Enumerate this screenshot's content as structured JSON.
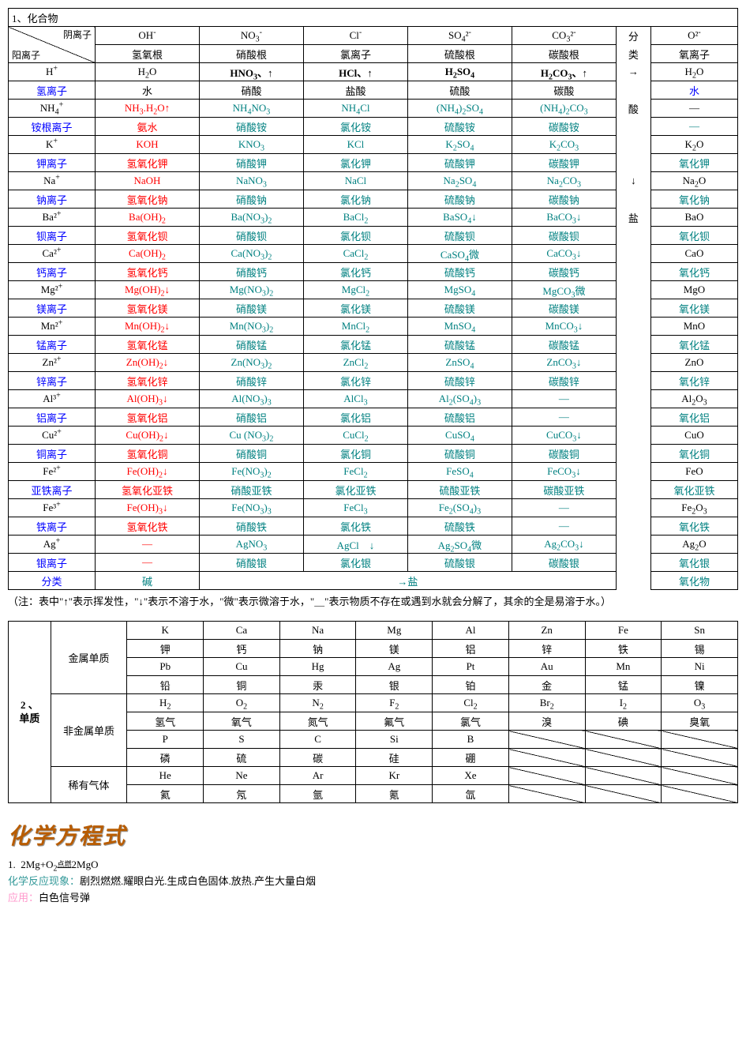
{
  "colors": {
    "blue": "#0000ff",
    "red": "#ff0000",
    "teal": "#008080",
    "black": "#000000",
    "title_orange": "#b85c00",
    "label_teal": "#339999",
    "label_pink": "#ff99cc",
    "bg": "#ffffff"
  },
  "table1": {
    "title": "1、化合物",
    "diag_top": "阴离子",
    "diag_bot": "阳离子",
    "cols": [
      {
        "f": "OH⁻",
        "n": "氢氧根"
      },
      {
        "f": "NO₃⁻",
        "n": "硝酸根"
      },
      {
        "f": "Cl⁻",
        "n": "氯离子"
      },
      {
        "f": "SO₄²⁻",
        "n": "硫酸根"
      },
      {
        "f": "CO₃²⁻",
        "n": "碳酸根"
      }
    ],
    "class_col": {
      "h1": "分",
      "h2": "类",
      "acid": "酸",
      "salt": "盐",
      "arrow_r": "→",
      "arrow_d": "↓"
    },
    "oxide_col": {
      "f": "O²⁻",
      "n": "氧离子"
    },
    "rows": [
      {
        "ion": "H⁺",
        "ion_n": "氢离子",
        "c": [
          {
            "f": "H₂O",
            "n": "水",
            "cl": "black"
          },
          {
            "f": "HNO₃、↑",
            "n": "硝酸",
            "cl": "black",
            "b": true
          },
          {
            "f": "HCl、↑",
            "n": "盐酸",
            "cl": "black",
            "b": true
          },
          {
            "f": "H₂SO₄",
            "n": "硫酸",
            "cl": "black",
            "b": true
          },
          {
            "f": "H₂CO₃、↑",
            "n": "碳酸",
            "cl": "black",
            "b": true
          }
        ],
        "ox": {
          "f": "H₂O",
          "n": "水",
          "ncl": "blue"
        }
      },
      {
        "ion": "NH₄⁺",
        "ion_n": "铵根离子",
        "c": [
          {
            "f": "NH₃.H₂O↑",
            "n": "氨水",
            "cl": "red"
          },
          {
            "f": "NH₄NO₃",
            "n": "硝酸铵",
            "cl": "teal"
          },
          {
            "f": "NH₄Cl",
            "n": "氯化铵",
            "cl": "teal"
          },
          {
            "f": "(NH₄)₂SO₄",
            "n": "硫酸铵",
            "cl": "teal"
          },
          {
            "f": "(NH₄)₂CO₃",
            "n": "碳酸铵",
            "cl": "teal"
          }
        ],
        "ox": {
          "f": "—",
          "n": "—"
        }
      },
      {
        "ion": "K⁺",
        "ion_n": "钾离子",
        "c": [
          {
            "f": "KOH",
            "n": "氢氧化钾",
            "cl": "red"
          },
          {
            "f": "KNO₃",
            "n": "硝酸钾",
            "cl": "teal"
          },
          {
            "f": "KCl",
            "n": "氯化钾",
            "cl": "teal"
          },
          {
            "f": "K₂SO₄",
            "n": "硫酸钾",
            "cl": "teal"
          },
          {
            "f": "K₂CO₃",
            "n": "碳酸钾",
            "cl": "teal"
          }
        ],
        "ox": {
          "f": "K₂O",
          "n": "氧化钾"
        }
      },
      {
        "ion": "Na⁺",
        "ion_n": "钠离子",
        "c": [
          {
            "f": "NaOH",
            "n": "氢氧化钠",
            "cl": "red"
          },
          {
            "f": "NaNO₃",
            "n": "硝酸钠",
            "cl": "teal"
          },
          {
            "f": "NaCl",
            "n": "氯化钠",
            "cl": "teal"
          },
          {
            "f": "Na₂SO₄",
            "n": "硫酸钠",
            "cl": "teal"
          },
          {
            "f": "Na₂CO₃",
            "n": "碳酸钠",
            "cl": "teal"
          }
        ],
        "ox": {
          "f": "Na₂O",
          "n": "氧化钠"
        }
      },
      {
        "ion": "Ba²⁺",
        "ion_n": "钡离子",
        "c": [
          {
            "f": "Ba(OH)₂",
            "n": "氢氧化钡",
            "cl": "red"
          },
          {
            "f": "Ba(NO₃)₂",
            "n": "硝酸钡",
            "cl": "teal"
          },
          {
            "f": "BaCl₂",
            "n": "氯化钡",
            "cl": "teal"
          },
          {
            "f": "BaSO₄↓",
            "n": "硫酸钡",
            "cl": "teal"
          },
          {
            "f": "BaCO₃↓",
            "n": "碳酸钡",
            "cl": "teal"
          }
        ],
        "ox": {
          "f": "BaO",
          "n": "氧化钡"
        }
      },
      {
        "ion": "Ca²⁺",
        "ion_n": "钙离子",
        "c": [
          {
            "f": "Ca(OH)₂",
            "n": "氢氧化钙",
            "cl": "red"
          },
          {
            "f": "Ca(NO₃)₂",
            "n": "硝酸钙",
            "cl": "teal"
          },
          {
            "f": "CaCl₂",
            "n": "氯化钙",
            "cl": "teal"
          },
          {
            "f": "CaSO₄微",
            "n": "硫酸钙",
            "cl": "teal"
          },
          {
            "f": "CaCO₃↓",
            "n": "碳酸钙",
            "cl": "teal"
          }
        ],
        "ox": {
          "f": "CaO",
          "n": "氧化钙"
        }
      },
      {
        "ion": "Mg²⁺",
        "ion_n": "镁离子",
        "c": [
          {
            "f": "Mg(OH)₂↓",
            "n": "氢氧化镁",
            "cl": "red"
          },
          {
            "f": "Mg(NO₃)₂",
            "n": "硝酸镁",
            "cl": "teal"
          },
          {
            "f": "MgCl₂",
            "n": "氯化镁",
            "cl": "teal"
          },
          {
            "f": "MgSO₄",
            "n": "硫酸镁",
            "cl": "teal"
          },
          {
            "f": "MgCO₃微",
            "n": "碳酸镁",
            "cl": "teal"
          }
        ],
        "ox": {
          "f": "MgO",
          "n": "氧化镁"
        }
      },
      {
        "ion": "Mn²⁺",
        "ion_n": "锰离子",
        "c": [
          {
            "f": "Mn(OH)₂↓",
            "n": "氢氧化锰",
            "cl": "red"
          },
          {
            "f": "Mn(NO₃)₂",
            "n": "硝酸锰",
            "cl": "teal"
          },
          {
            "f": "MnCl₂",
            "n": "氯化锰",
            "cl": "teal"
          },
          {
            "f": "MnSO₄",
            "n": "硫酸锰",
            "cl": "teal"
          },
          {
            "f": "MnCO₃↓",
            "n": "碳酸锰",
            "cl": "teal"
          }
        ],
        "ox": {
          "f": "MnO",
          "n": "氧化锰"
        }
      },
      {
        "ion": "Zn²⁺",
        "ion_n": "锌离子",
        "c": [
          {
            "f": "Zn(OH)₂↓",
            "n": "氢氧化锌",
            "cl": "red"
          },
          {
            "f": "Zn(NO₃)₂",
            "n": "硝酸锌",
            "cl": "teal"
          },
          {
            "f": "ZnCl₂",
            "n": "氯化锌",
            "cl": "teal"
          },
          {
            "f": "ZnSO₄",
            "n": "硫酸锌",
            "cl": "teal"
          },
          {
            "f": "ZnCO₃↓",
            "n": "碳酸锌",
            "cl": "teal"
          }
        ],
        "ox": {
          "f": "ZnO",
          "n": "氧化锌"
        }
      },
      {
        "ion": "Al³⁺",
        "ion_n": "铝离子",
        "c": [
          {
            "f": "Al(OH)₃↓",
            "n": "氢氧化铝",
            "cl": "red"
          },
          {
            "f": "Al(NO₃)₃",
            "n": "硝酸铝",
            "cl": "teal"
          },
          {
            "f": "AlCl₃",
            "n": "氯化铝",
            "cl": "teal"
          },
          {
            "f": "Al₂(SO₄)₃",
            "n": "硫酸铝",
            "cl": "teal"
          },
          {
            "f": "—",
            "n": "—",
            "cl": "teal"
          }
        ],
        "ox": {
          "f": "Al₂O₃",
          "n": "氧化铝"
        }
      },
      {
        "ion": "Cu²⁺",
        "ion_n": "铜离子",
        "c": [
          {
            "f": "Cu(OH)₂↓",
            "n": "氢氧化铜",
            "cl": "red"
          },
          {
            "f": "Cu (NO₃)₂",
            "n": "硝酸铜",
            "cl": "teal"
          },
          {
            "f": "CuCl₂",
            "n": "氯化铜",
            "cl": "teal"
          },
          {
            "f": "CuSO₄",
            "n": "硫酸铜",
            "cl": "teal"
          },
          {
            "f": "CuCO₃↓",
            "n": "碳酸铜",
            "cl": "teal"
          }
        ],
        "ox": {
          "f": "CuO",
          "n": "氧化铜"
        }
      },
      {
        "ion": "Fe²⁺",
        "ion_n": "亚铁离子",
        "c": [
          {
            "f": "Fe(OH)₂↓",
            "n": "氢氧化亚铁",
            "cl": "red"
          },
          {
            "f": "Fe(NO₃)₂",
            "n": "硝酸亚铁",
            "cl": "teal"
          },
          {
            "f": "FeCl₂",
            "n": "氯化亚铁",
            "cl": "teal"
          },
          {
            "f": "FeSO₄",
            "n": "硫酸亚铁",
            "cl": "teal"
          },
          {
            "f": "FeCO₃↓",
            "n": "碳酸亚铁",
            "cl": "teal"
          }
        ],
        "ox": {
          "f": "FeO",
          "n": "氧化亚铁"
        }
      },
      {
        "ion": "Fe³⁺",
        "ion_n": "铁离子",
        "c": [
          {
            "f": "Fe(OH)₃↓",
            "n": "氢氧化铁",
            "cl": "red"
          },
          {
            "f": "Fe(NO₃)₃",
            "n": "硝酸铁",
            "cl": "teal"
          },
          {
            "f": "FeCl₃",
            "n": "氯化铁",
            "cl": "teal"
          },
          {
            "f": "Fe₂(SO₄)₃",
            "n": "硫酸铁",
            "cl": "teal"
          },
          {
            "f": "—",
            "n": "—",
            "cl": "teal"
          }
        ],
        "ox": {
          "f": "Fe₂O₃",
          "n": "氧化铁"
        }
      },
      {
        "ion": "Ag⁺",
        "ion_n": "银离子",
        "c": [
          {
            "f": "—",
            "n": "—",
            "cl": "red"
          },
          {
            "f": "AgNO₃",
            "n": "硝酸银",
            "cl": "teal"
          },
          {
            "f": "AgCl　↓",
            "n": "氯化银",
            "cl": "teal"
          },
          {
            "f": "Ag₂SO₄微",
            "n": "硫酸银",
            "cl": "teal"
          },
          {
            "f": "Ag₂CO₃↓",
            "n": "碳酸银",
            "cl": "teal"
          }
        ],
        "ox": {
          "f": "Ag₂O",
          "n": "氧化银"
        }
      }
    ],
    "bottom": {
      "class": "分类",
      "base": "碱",
      "salt_arrow": "→盐",
      "oxide": "氧化物"
    },
    "note": "（注：表中\"↑\"表示挥发性，\"↓\"表示不溶于水，\"微\"表示微溶于水，\"＿\"表示物质不存在或遇到水就会分解了，其余的全是易溶于水。）"
  },
  "table2": {
    "title": "2 、单质",
    "groups": [
      {
        "name": "金属单质",
        "rows": [
          {
            "sym": [
              "K",
              "Ca",
              "Na",
              "Mg",
              "Al",
              "Zn",
              "Fe",
              "Sn"
            ],
            "cn": [
              "钾",
              "钙",
              "钠",
              "镁",
              "铝",
              "锌",
              "铁",
              "锡"
            ]
          },
          {
            "sym": [
              "Pb",
              "Cu",
              "Hg",
              "Ag",
              "Pt",
              "Au",
              "Mn",
              "Ni"
            ],
            "cn": [
              "铅",
              "铜",
              "汞",
              "银",
              "铂",
              "金",
              "锰",
              "镍"
            ]
          }
        ]
      },
      {
        "name": "非金属单质",
        "rows": [
          {
            "sym": [
              "H₂",
              "O₂",
              "N₂",
              "F₂",
              "Cl₂",
              "Br₂",
              "I₂",
              "O₃"
            ],
            "cn": [
              "氢气",
              "氧气",
              "氮气",
              "氟气",
              "氯气",
              "溴",
              "碘",
              "臭氧"
            ]
          },
          {
            "sym": [
              "P",
              "S",
              "C",
              "Si",
              "B",
              "/",
              "/",
              "/"
            ],
            "cn": [
              "磷",
              "硫",
              "碳",
              "硅",
              "硼",
              "/",
              "/",
              "/"
            ]
          }
        ]
      },
      {
        "name": "稀有气体",
        "rows": [
          {
            "sym": [
              "He",
              "Ne",
              "Ar",
              "Kr",
              "Xe",
              "/",
              "/",
              "/"
            ],
            "cn": [
              "氦",
              "氖",
              "氩",
              "氪",
              "氙",
              "/",
              "/",
              "/"
            ]
          }
        ]
      }
    ]
  },
  "section_title": "化学方程式",
  "equation": {
    "num": "1.",
    "eq_left": "2Mg+O₂",
    "eq_cond": "点燃",
    "eq_right": "2MgO",
    "phen_label": "化学反应现象：",
    "phen": "剧烈燃燃.耀眼白光.生成白色固体.放热.产生大量白烟",
    "app_label": "应用：",
    "app": "白色信号弹"
  }
}
